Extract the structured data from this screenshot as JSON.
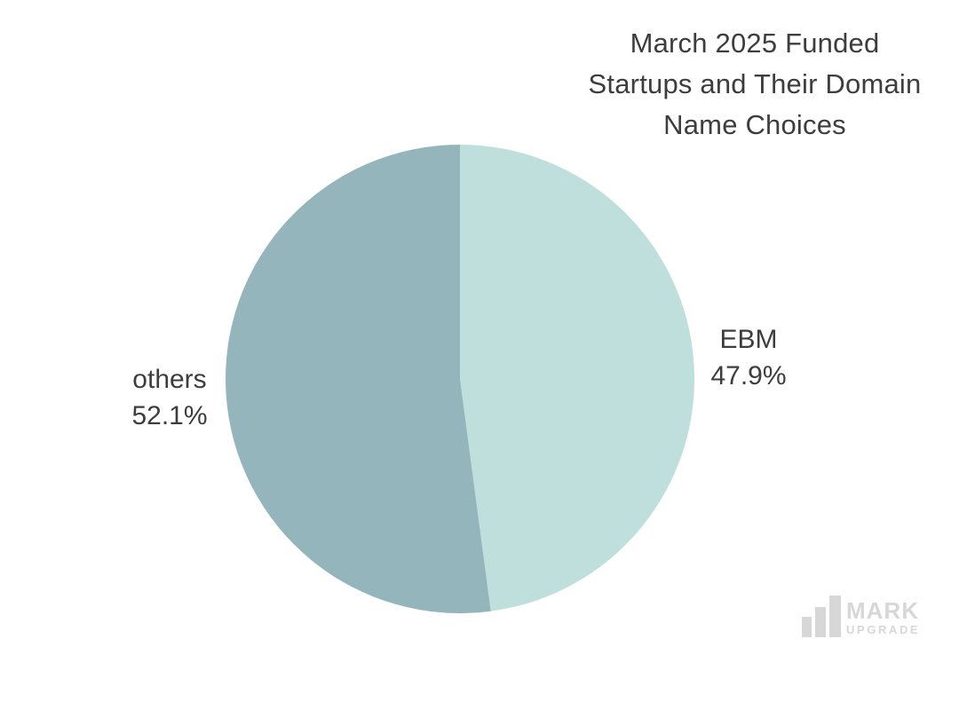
{
  "theme": {
    "text_color": "#3d3d3d",
    "logo_color": "#d7d7d7",
    "background": "#ffffff"
  },
  "title": {
    "full": "March 2025 Funded Startups and Their Domain Name Choices",
    "lines": [
      "March 2025 Funded",
      "Startups and Their Domain",
      "Name Choices"
    ]
  },
  "chart_data": {
    "type": "pie",
    "title": "March 2025 Funded Startups and Their Domain Name Choices",
    "start_angle_deg": 0,
    "direction": "clockwise",
    "legend_position": "labels-outside",
    "slices": [
      {
        "label": "EBM",
        "value": 47.9,
        "pct_label": "47.9%",
        "color": "#bfdfdd",
        "position": "right"
      },
      {
        "label": "others",
        "value": 52.1,
        "pct_label": "52.1%",
        "color": "#94b5bb",
        "position": "left"
      }
    ]
  },
  "logo": {
    "mark": "MARK",
    "upgrade": "UPGRADE",
    "icon": "ascending-bars"
  }
}
